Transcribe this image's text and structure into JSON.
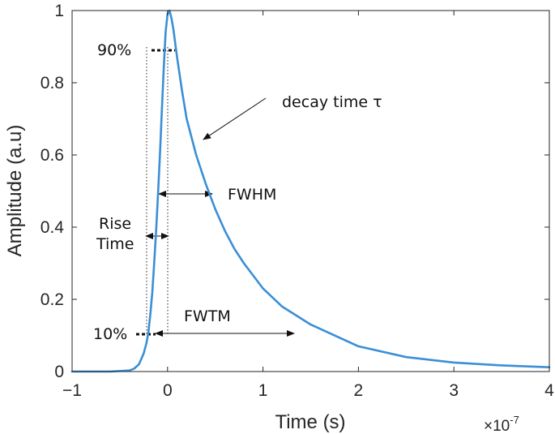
{
  "chart_data": {
    "type": "line",
    "xlabel": "Time (s)",
    "ylabel": "Amplitude (a.u)",
    "x_exponent": "×10",
    "x_exponent_power": "-7",
    "xlim": [
      -1,
      4
    ],
    "ylim": [
      0,
      1
    ],
    "xticks": [
      "-1",
      "0",
      "1",
      "2",
      "3",
      "4"
    ],
    "yticks": [
      "0",
      "0.2",
      "0.4",
      "0.6",
      "0.8",
      "1"
    ],
    "grid": false,
    "series_color": "#3a8fd6",
    "series": [
      {
        "x": [
          -1.0,
          -0.6,
          -0.4,
          -0.35,
          -0.3,
          -0.25,
          -0.22,
          -0.2,
          -0.18,
          -0.16,
          -0.14,
          -0.12,
          -0.1,
          -0.08,
          -0.06,
          -0.04,
          -0.02,
          0.0,
          0.02,
          0.04,
          0.06,
          0.1,
          0.15,
          0.2,
          0.3,
          0.4,
          0.5,
          0.6,
          0.7,
          0.8,
          1.0,
          1.2,
          1.5,
          2.0,
          2.5,
          3.0,
          3.5,
          4.0
        ],
        "y": [
          0.0,
          0.0,
          0.003,
          0.008,
          0.02,
          0.05,
          0.08,
          0.11,
          0.16,
          0.22,
          0.3,
          0.39,
          0.49,
          0.6,
          0.72,
          0.84,
          0.94,
          0.99,
          1.0,
          0.98,
          0.95,
          0.87,
          0.78,
          0.7,
          0.6,
          0.52,
          0.45,
          0.39,
          0.34,
          0.3,
          0.23,
          0.18,
          0.13,
          0.07,
          0.04,
          0.025,
          0.017,
          0.012
        ]
      }
    ],
    "annotations": {
      "p90": "90%",
      "p10": "10%",
      "decay": "decay time τ",
      "fwhm": "FWHM",
      "fwtm": "FWTM",
      "rise_line1": "Rise",
      "rise_line2": "Time"
    }
  }
}
